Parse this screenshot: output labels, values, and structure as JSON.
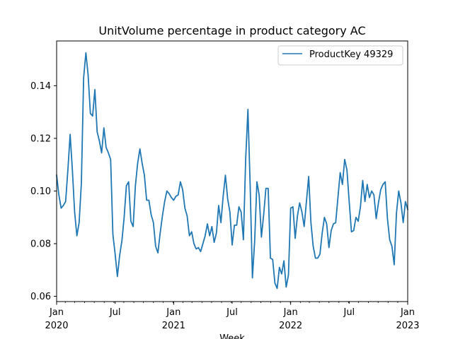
{
  "chart_data": {
    "type": "line",
    "title": "UnitVolume percentage in product category AC",
    "xlabel": "Week",
    "ylabel": "",
    "ylim": [
      0.058,
      0.157
    ],
    "xlim": [
      "2020-01-05",
      "2023-01-01"
    ],
    "yticks": [
      0.06,
      0.08,
      0.1,
      0.12,
      0.14
    ],
    "ytick_labels": [
      "0.06",
      "0.08",
      "0.10",
      "0.12",
      "0.14"
    ],
    "xticks": [
      {
        "date": "2020-01-05",
        "line1": "Jan",
        "line2": "2020",
        "major": true
      },
      {
        "date": "2020-07-05",
        "line1": "Jul",
        "line2": "",
        "major": false
      },
      {
        "date": "2021-01-03",
        "line1": "Jan",
        "line2": "2021",
        "major": true
      },
      {
        "date": "2021-07-04",
        "line1": "Jul",
        "line2": "",
        "major": false
      },
      {
        "date": "2022-01-02",
        "line1": "Jan",
        "line2": "2022",
        "major": true
      },
      {
        "date": "2022-07-03",
        "line1": "Jul",
        "line2": "",
        "major": false
      },
      {
        "date": "2023-01-01",
        "line1": "Jan",
        "line2": "2023",
        "major": true
      }
    ],
    "grid": false,
    "legend_position": "top-right",
    "series": [
      {
        "name": "ProductKey 49329",
        "color": "#1f77b4",
        "x_start": "2020-01-05",
        "x_step_days": 7,
        "values": [
          0.106,
          0.0985,
          0.0935,
          0.0945,
          0.096,
          0.108,
          0.1215,
          0.108,
          0.092,
          0.083,
          0.088,
          0.103,
          0.143,
          0.1525,
          0.144,
          0.1295,
          0.1285,
          0.1385,
          0.1225,
          0.119,
          0.1145,
          0.124,
          0.1165,
          0.1145,
          0.112,
          0.0835,
          0.076,
          0.0675,
          0.0755,
          0.081,
          0.09,
          0.102,
          0.1035,
          0.0885,
          0.0865,
          0.102,
          0.1105,
          0.116,
          0.1105,
          0.106,
          0.0965,
          0.0965,
          0.091,
          0.088,
          0.079,
          0.0765,
          0.084,
          0.0905,
          0.096,
          0.1,
          0.099,
          0.0975,
          0.0965,
          0.098,
          0.0985,
          0.1035,
          0.1005,
          0.0935,
          0.0905,
          0.083,
          0.0845,
          0.08,
          0.078,
          0.0785,
          0.077,
          0.08,
          0.083,
          0.0875,
          0.083,
          0.0865,
          0.0805,
          0.084,
          0.0945,
          0.088,
          0.098,
          0.106,
          0.097,
          0.092,
          0.0795,
          0.087,
          0.087,
          0.094,
          0.092,
          0.0815,
          0.112,
          0.131,
          0.102,
          0.067,
          0.081,
          0.1035,
          0.0985,
          0.0825,
          0.091,
          0.101,
          0.101,
          0.0745,
          0.074,
          0.065,
          0.063,
          0.071,
          0.0685,
          0.0735,
          0.0635,
          0.068,
          0.0935,
          0.094,
          0.082,
          0.0905,
          0.0955,
          0.092,
          0.0865,
          0.096,
          0.1055,
          0.088,
          0.079,
          0.0745,
          0.0745,
          0.076,
          0.084,
          0.09,
          0.0875,
          0.0785,
          0.085,
          0.0875,
          0.088,
          0.0975,
          0.107,
          0.1025,
          0.112,
          0.108,
          0.096,
          0.0845,
          0.085,
          0.09,
          0.0885,
          0.094,
          0.104,
          0.096,
          0.1025,
          0.0975,
          0.1,
          0.0985,
          0.0895,
          0.0955,
          0.1005,
          0.1025,
          0.1035,
          0.0895,
          0.0815,
          0.079,
          0.072,
          0.0915,
          0.1,
          0.0955,
          0.088,
          0.096,
          0.093
        ]
      }
    ]
  }
}
